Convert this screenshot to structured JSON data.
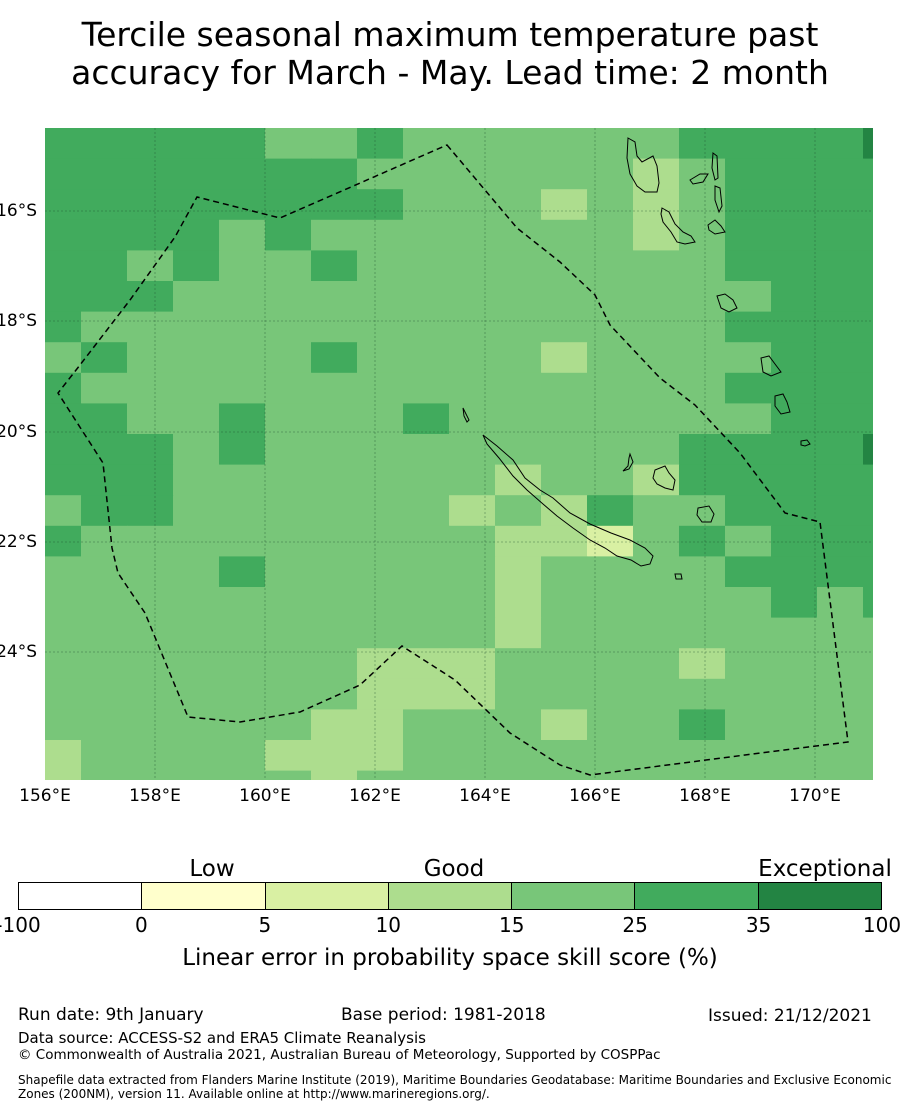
{
  "title": {
    "line1": "Tercile seasonal maximum temperature past",
    "line2": "accuracy for March - May. Lead time: 2 month"
  },
  "map": {
    "lat_labels": [
      "16°S",
      "18°S",
      "20°S",
      "22°S",
      "24°S"
    ],
    "lon_labels": [
      "156°E",
      "158°E",
      "160°E",
      "162°E",
      "164°E",
      "166°E",
      "168°E",
      "170°E"
    ],
    "category_colors": {
      "a": "#238443",
      "b": "#41ab5d",
      "c": "#78c679",
      "d": "#addd8e",
      "e": "#d9f0a3",
      "f": "#ffffcc",
      "w": "#ffffff"
    },
    "category_ranges": {
      "w": "-100 to 0",
      "f": "0 to 5",
      "e": "5 to 10",
      "d": "10 to 15",
      "c": "15 to 25",
      "b": "25 to 35",
      "a": "35 to 100"
    },
    "skill_grid": [
      "bbbbbccbccccccbbbba",
      "bbbbbbbccccccdcbbbb",
      "bbbbbbbbcccdcdcbbbb",
      "bbbbcbcccccccdcbbbb",
      "bbcbccbccccccccbbbb",
      "bbbcccccccccccccbbb",
      "bccccccccccccccbbbb",
      "cbccccbccccdccccbbb",
      "bccccccccccccccbbbb",
      "bbccbcccbcccccccbbb",
      "bbbcbcccccccccbbbba",
      "bbbcccccccdccdbbbbb",
      "cbbccccccdcdbccbbbb",
      "bcccccccccddecbcbbb",
      "ccccbcccccdccccbbbb",
      "ccccccccccdcccccbcb",
      "ccccccccccdcccccccc",
      "cccccccdddccccdcccc",
      "cccccccdddccccccccc",
      "ccccccddcccdccbcccc",
      "dccccdddccccccccccc",
      "dcccccdcccccccccccc"
    ]
  },
  "legend": {
    "categories": [
      "Low",
      "Good",
      "Exceptional"
    ],
    "ticks": [
      "-100",
      "0",
      "5",
      "10",
      "15",
      "25",
      "35",
      "100"
    ],
    "colors": [
      "#ffffff",
      "#ffffcc",
      "#d9f0a3",
      "#addd8e",
      "#78c679",
      "#41ab5d",
      "#238443"
    ],
    "label": "Linear error in probability space skill score (%)"
  },
  "footer": {
    "run_date": "Run date: 9th January",
    "base_period": "Base period: 1981-2018",
    "issued": "Issued: 21/12/2021",
    "data_source": "Data source: ACCESS-S2 and ERA5 Climate Reanalysis",
    "copyright": "© Commonwealth of Australia 2021, Australian Bureau of Meteorology, Supported by COSPPac",
    "shapefile_line1": "Shapefile data extracted from Flanders Marine Institute (2019), Maritime Boundaries Geodatabase: Maritime Boundaries and Exclusive Economic",
    "shapefile_line2": "Zones (200NM), version 11. Available online at http://www.marineregions.org/."
  }
}
